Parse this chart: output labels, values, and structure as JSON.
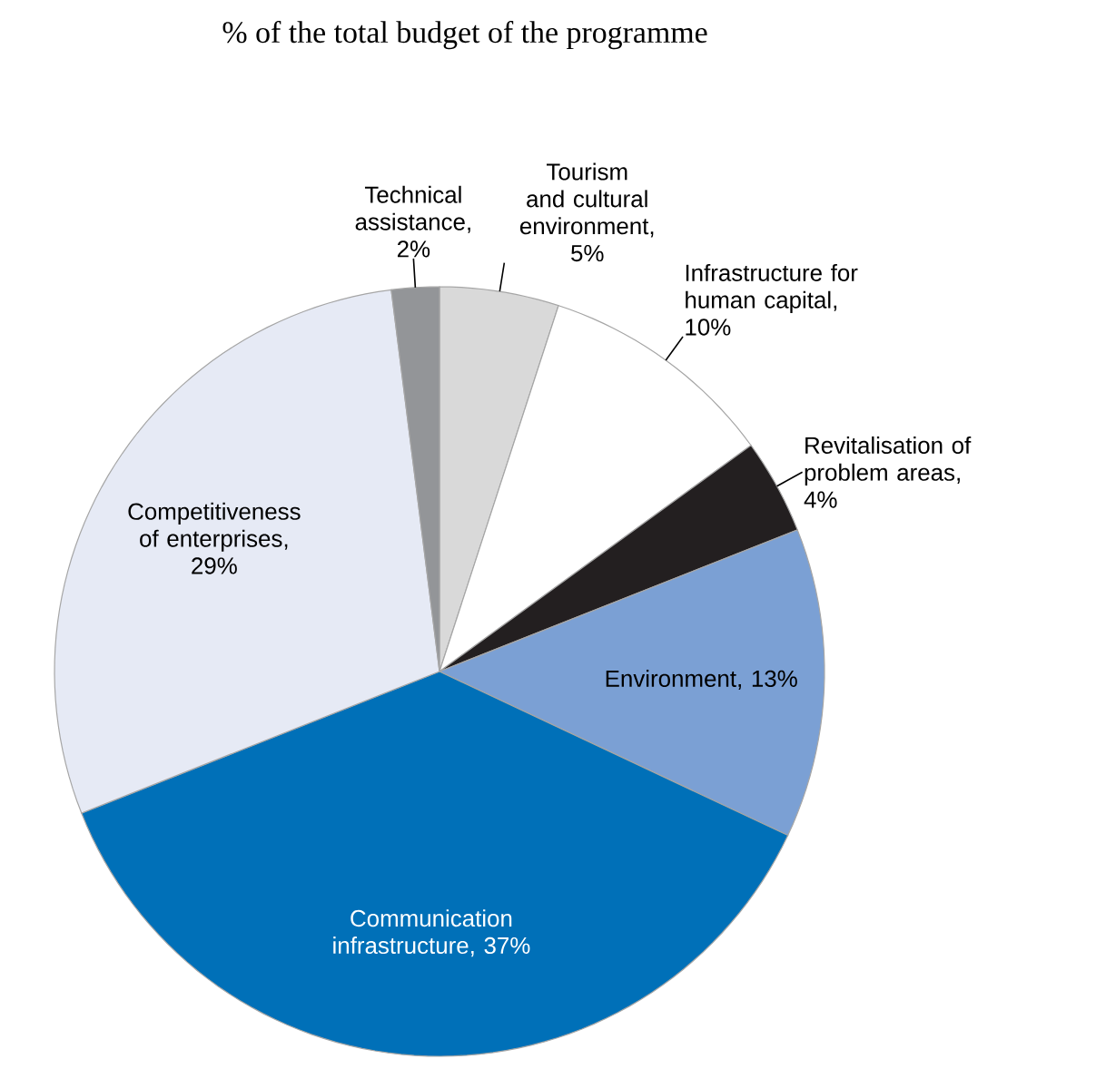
{
  "chart_data": {
    "type": "pie",
    "title": "% of the total budget of the programme",
    "categories": [
      "Tourism and cultural environment",
      "Infrastructure for human capital",
      "Revitalisation of problem areas",
      "Environment",
      "Communication infrastructure",
      "Competitiveness of enterprises",
      "Technical assistance"
    ],
    "values": [
      5,
      10,
      4,
      13,
      37,
      29,
      2
    ],
    "value_labels": [
      ", 5%",
      ", 10%",
      ", 4%",
      ", 13%",
      ", 37%",
      ", 29%",
      ", 2%"
    ],
    "colors": [
      "#d9d9d9",
      "#ffffff",
      "#231f20",
      "#7ba0d4",
      "#0070b8",
      "#e6eaf5",
      "#939598"
    ]
  }
}
